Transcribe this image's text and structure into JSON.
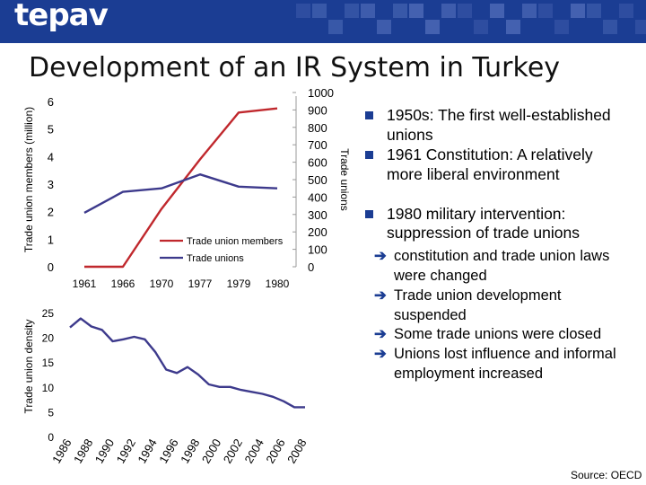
{
  "header": {
    "logo": "tepav"
  },
  "title": "Development of an IR System in Turkey",
  "chart_data": [
    {
      "type": "line",
      "x": [
        "1961",
        "1966",
        "1970",
        "1977",
        "1979",
        "1980"
      ],
      "ylabel": "Trade union members (million)",
      "ylabel_right": "Trade unions",
      "ylim": [
        0,
        6
      ],
      "y2lim": [
        0,
        1000
      ],
      "y_ticks": [
        0,
        1,
        2,
        3,
        4,
        5,
        6
      ],
      "y2_ticks": [
        0,
        100,
        200,
        300,
        400,
        500,
        600,
        700,
        800,
        900,
        1000
      ],
      "legend_position": "bottom-right",
      "series": [
        {
          "name": "Trade union members",
          "axis": "left",
          "color": "#c0282d",
          "values": [
            0,
            0,
            2.1,
            3.9,
            5.6,
            5.75
          ]
        },
        {
          "name": "Trade unions",
          "axis": "right",
          "color": "#3d3a8c",
          "values": [
            310,
            430,
            450,
            530,
            460,
            450
          ]
        }
      ]
    },
    {
      "type": "line",
      "x": [
        1986,
        1987,
        1988,
        1989,
        1990,
        1991,
        1992,
        1993,
        1994,
        1995,
        1996,
        1997,
        1998,
        1999,
        2000,
        2001,
        2002,
        2003,
        2004,
        2005,
        2006,
        2007,
        2008
      ],
      "x_tick_labels": [
        "1986",
        "1988",
        "1990",
        "1992",
        "1994",
        "1996",
        "1998",
        "2000",
        "2002",
        "2004",
        "2006",
        "2008"
      ],
      "ylabel": "Trade union density",
      "ylim": [
        0,
        25
      ],
      "y_ticks": [
        0,
        5,
        10,
        15,
        20,
        25
      ],
      "series": [
        {
          "name": "",
          "color": "#3d3a8c",
          "values": [
            22,
            23.8,
            22.2,
            21.5,
            19.2,
            19.6,
            20.1,
            19.6,
            17,
            13.5,
            12.8,
            14,
            12.5,
            10.5,
            10,
            10,
            9.4,
            9,
            8.6,
            8,
            7.1,
            5.9,
            5.9
          ]
        }
      ]
    }
  ],
  "bullets": [
    {
      "text": "1950s: The first well-established unions"
    },
    {
      "text": "1961 Constitution: A relatively more liberal environment"
    },
    {
      "text": "1980 military intervention: suppression of trade unions"
    }
  ],
  "subpoints": [
    {
      "text": "constitution and trade union laws were changed"
    },
    {
      "text": "Trade union development suspended"
    },
    {
      "text": "Some trade unions were closed"
    },
    {
      "text": "Unions lost influence and informal employment increased"
    }
  ],
  "source": "Source: OECD",
  "colors": {
    "header": "#1b3d93",
    "tile": "#4a67b4",
    "bullet": "#1b3d93"
  }
}
